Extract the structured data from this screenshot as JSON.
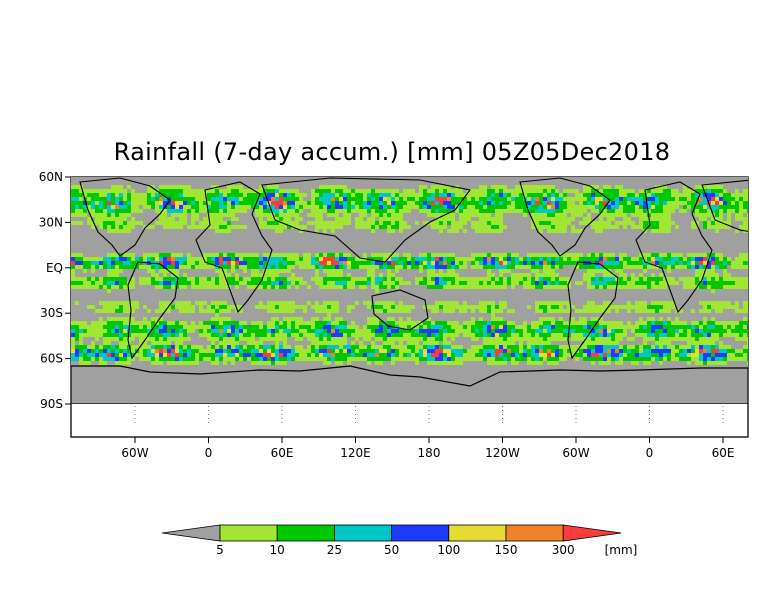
{
  "title": "Rainfall (7-day accum.) [mm] 05Z05Dec2018",
  "y_axis_labels": [
    "60N",
    "30N",
    "EQ",
    "30S",
    "60S",
    "90S"
  ],
  "x_axis_labels": [
    "60W",
    "0",
    "60E",
    "120E",
    "180",
    "120W",
    "60W",
    "0",
    "60E"
  ],
  "legend": {
    "ticks": [
      "5",
      "10",
      "25",
      "50",
      "100",
      "150",
      "300"
    ],
    "unit": "[mm]",
    "colors": [
      "#a0a0a0",
      "#a0e632",
      "#00c800",
      "#00c8c8",
      "#1e3cff",
      "#e6dc32",
      "#f08228",
      "#fa3c3c"
    ]
  },
  "colors": {
    "land_no_rain": "#a0a0a0",
    "light": "#a0e632",
    "moderate": "#00c800",
    "medium": "#00c8c8",
    "heavy": "#1e3cff",
    "very_heavy": "#e6dc32",
    "extreme": "#f08228",
    "max": "#fa3c3c",
    "coastline": "#000000"
  }
}
